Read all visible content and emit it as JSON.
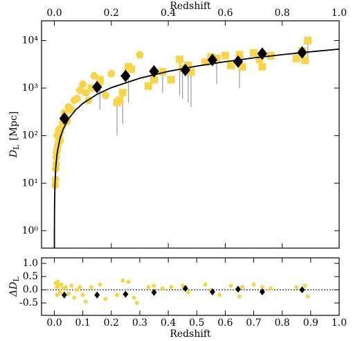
{
  "chart_data": [
    {
      "type": "scatter",
      "xlabel": "Redshift",
      "ylabel": {
        "symbol": "D",
        "subscript": "L",
        "unit": "[Mpc]"
      },
      "xlim": [
        -0.045,
        1.0
      ],
      "ylim": [
        0.43,
        26000
      ],
      "log_y": true,
      "xticks": [
        {
          "value": 0,
          "label": "0.0"
        },
        0.2,
        0.4,
        0.6,
        0.8,
        {
          "value": 1,
          "label": "1.0"
        }
      ],
      "yticks": [
        {
          "value": 1,
          "label": "10⁰"
        },
        {
          "value": 10,
          "label": "10¹"
        },
        {
          "value": 100,
          "label": "10²"
        },
        {
          "value": 1000,
          "label": "10³"
        },
        {
          "value": 10000,
          "label": "10⁴"
        }
      ],
      "series": [
        {
          "marker": "circle",
          "color": "#f7d54a",
          "x": [
            0.003,
            0.004,
            0.005,
            0.006,
            0.007,
            0.008,
            0.01,
            0.012,
            0.015,
            0.017,
            0.02,
            0.022,
            0.025,
            0.03,
            0.035,
            0.04,
            0.045,
            0.05,
            0.06,
            0.07,
            0.08,
            0.09,
            0.1,
            0.11,
            0.12,
            0.14,
            0.16,
            0.18,
            0.2,
            0.3,
            0.01,
            0.015
          ],
          "values": [
            9,
            12,
            20,
            25,
            35,
            45,
            50,
            60,
            75,
            100,
            80,
            120,
            150,
            180,
            300,
            250,
            200,
            400,
            350,
            550,
            600,
            900,
            1200,
            800,
            550,
            1800,
            1300,
            700,
            2000,
            5000,
            100,
            130
          ]
        },
        {
          "marker": "square",
          "color": "#f7d54a",
          "error_color": "#999999",
          "x": [
            0.13,
            0.16,
            0.22,
            0.23,
            0.24,
            0.26,
            0.27,
            0.33,
            0.35,
            0.38,
            0.41,
            0.44,
            0.45,
            0.47,
            0.48,
            0.53,
            0.55,
            0.57,
            0.6,
            0.62,
            0.65,
            0.66,
            0.7,
            0.72,
            0.73,
            0.76,
            0.85,
            0.87,
            0.88,
            0.89
          ],
          "values": [
            1000,
            1500,
            500,
            550,
            800,
            2800,
            2500,
            1100,
            1500,
            2200,
            1500,
            4000,
            2600,
            3000,
            2200,
            3500,
            4500,
            4200,
            4800,
            3000,
            5000,
            2800,
            5500,
            4000,
            2800,
            4800,
            4200,
            6000,
            3800,
            10000
          ],
          "errors": [
            null,
            1150,
            400,
            null,
            620,
            2300,
            null,
            null,
            null,
            1400,
            null,
            3300,
            2000,
            2500,
            1800,
            null,
            null,
            3000,
            null,
            null,
            4000,
            null,
            null,
            null,
            null,
            null,
            null,
            null,
            null,
            6000
          ]
        },
        {
          "marker": "diamond",
          "color": "#000000",
          "x": [
            0.035,
            0.15,
            0.25,
            0.35,
            0.46,
            0.555,
            0.645,
            0.73,
            0.87
          ],
          "values": [
            230,
            1050,
            1800,
            2250,
            2400,
            3900,
            3600,
            5300,
            5600
          ]
        },
        {
          "marker": "line",
          "color": "#000000",
          "x": [
            0.0001,
            0.0005,
            0.001,
            0.002,
            0.005,
            0.01,
            0.02,
            0.03,
            0.05,
            0.075,
            0.1,
            0.15,
            0.2,
            0.3,
            0.4,
            0.5,
            0.6,
            0.7,
            0.8,
            0.9,
            1.0
          ],
          "values": [
            0.43,
            2.1,
            4.3,
            8.6,
            21.6,
            43.4,
            88,
            133,
            226,
            347,
            475,
            740,
            1020,
            1610,
            2240,
            2900,
            3590,
            4310,
            5040,
            5800,
            6600
          ]
        }
      ]
    },
    {
      "type": "scatter",
      "xlabel": "Redshift",
      "ylabel": {
        "symbol": "ΔD",
        "subscript": "L"
      },
      "xlim": [
        -0.045,
        1.0
      ],
      "ylim": [
        -0.97,
        1.21
      ],
      "reference_line": 0,
      "xticks": [
        {
          "value": 0,
          "label": "0.0"
        },
        0.1,
        0.2,
        0.3,
        0.4,
        0.5,
        0.6,
        0.7,
        0.8,
        0.9,
        {
          "value": 1,
          "label": "1.0"
        }
      ],
      "yticks": [
        {
          "value": -0.5,
          "label": "-0.5"
        },
        {
          "value": 0,
          "label": "0.0"
        },
        0.5,
        {
          "value": 1,
          "label": "1.0"
        }
      ],
      "series": [
        {
          "marker": "circle",
          "color": "#f7d54a",
          "x": [
            0.005,
            0.008,
            0.01,
            0.012,
            0.015,
            0.02,
            0.025,
            0.03,
            0.04,
            0.05,
            0.06,
            0.07,
            0.08,
            0.09,
            0.1,
            0.11,
            0.13,
            0.16,
            0.18,
            0.22,
            0.24,
            0.26,
            0.28,
            0.29,
            0.33,
            0.35,
            0.38,
            0.41,
            0.45,
            0.47,
            0.53,
            0.55,
            0.58,
            0.62,
            0.65,
            0.66,
            0.7,
            0.73,
            0.76,
            0.85,
            0.88,
            0.89
          ],
          "values": [
            0.25,
            0.1,
            -0.2,
            0.3,
            0.15,
            -0.1,
            0.2,
            0.05,
            0.1,
            -0.15,
            0.15,
            -0.3,
            0.0,
            0.1,
            -0.2,
            -0.45,
            0.1,
            0.2,
            -0.35,
            -0.2,
            0.35,
            0.3,
            -0.3,
            -0.5,
            0.1,
            0.15,
            0.05,
            0.1,
            0.15,
            -0.1,
            0.2,
            0.0,
            -0.2,
            0.15,
            -0.25,
            0.1,
            0.2,
            0.1,
            0.05,
            0.1,
            0.15,
            -0.25
          ]
        },
        {
          "marker": "diamond",
          "color": "#000000",
          "x": [
            0.035,
            0.15,
            0.25,
            0.35,
            0.46,
            0.555,
            0.645,
            0.73,
            0.87
          ],
          "values": [
            -0.2,
            -0.2,
            -0.17,
            -0.1,
            0.05,
            -0.08,
            0.02,
            -0.08,
            0.0
          ]
        }
      ]
    }
  ]
}
